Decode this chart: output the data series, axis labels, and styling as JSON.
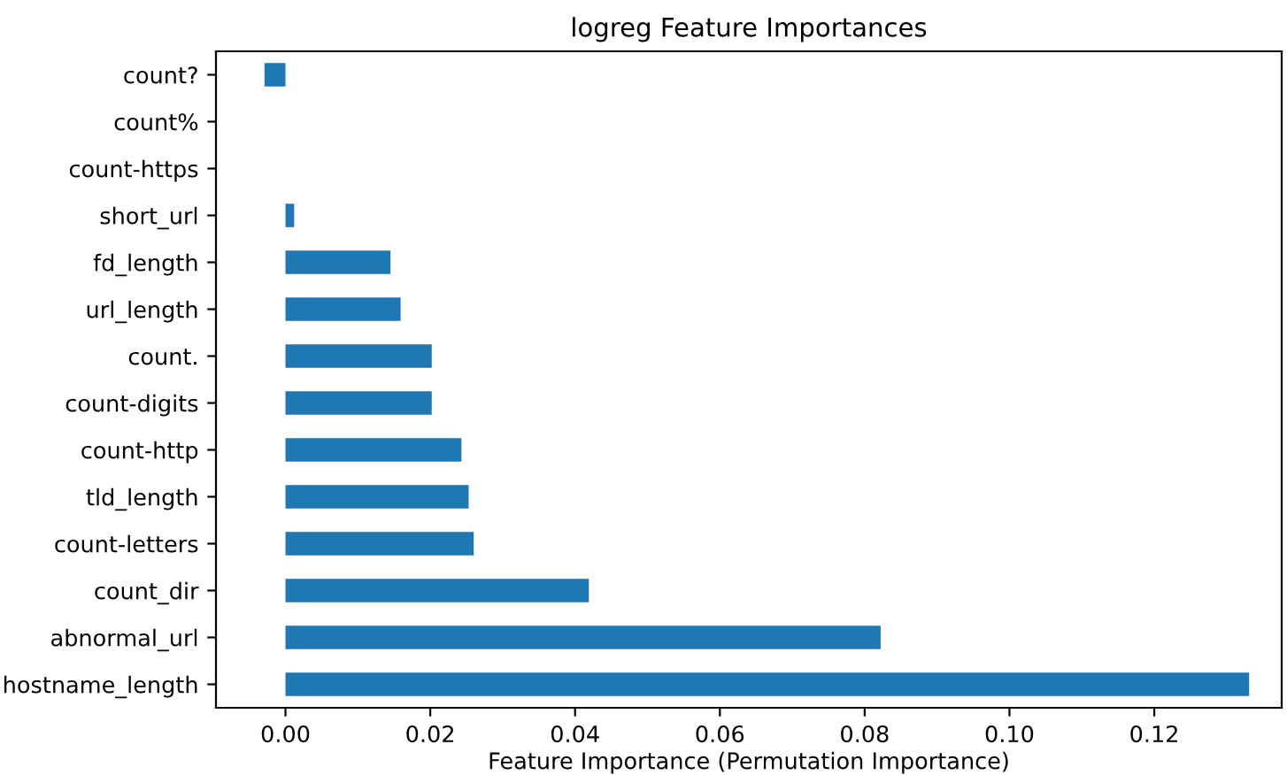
{
  "chart_data": {
    "type": "bar",
    "orientation": "horizontal",
    "title": "logreg Feature Importances",
    "xlabel": "Feature Importance (Permutation Importance)",
    "categories": [
      "count?",
      "count%",
      "count-https",
      "short_url",
      "fd_length",
      "url_length",
      "count.",
      "count-digits",
      "count-http",
      "tld_length",
      "count-letters",
      "count_dir",
      "abnormal_url",
      "hostname_length"
    ],
    "values": [
      -0.0029,
      0,
      0,
      0.0012,
      0.0145,
      0.0159,
      0.0202,
      0.0202,
      0.0243,
      0.0253,
      0.026,
      0.0419,
      0.0822,
      0.1331
    ],
    "color": "#1f77b4",
    "xlim": [
      -0.0096,
      0.1376
    ],
    "xticks": [
      {
        "value": 0,
        "label": "0.00"
      },
      {
        "value": 0.02,
        "label": "0.02"
      },
      {
        "value": 0.04,
        "label": "0.04"
      },
      {
        "value": 0.06,
        "label": "0.06"
      },
      {
        "value": 0.08,
        "label": "0.08"
      },
      {
        "value": 0.1,
        "label": "0.10"
      },
      {
        "value": 0.12,
        "label": "0.12"
      }
    ],
    "grid": false
  }
}
